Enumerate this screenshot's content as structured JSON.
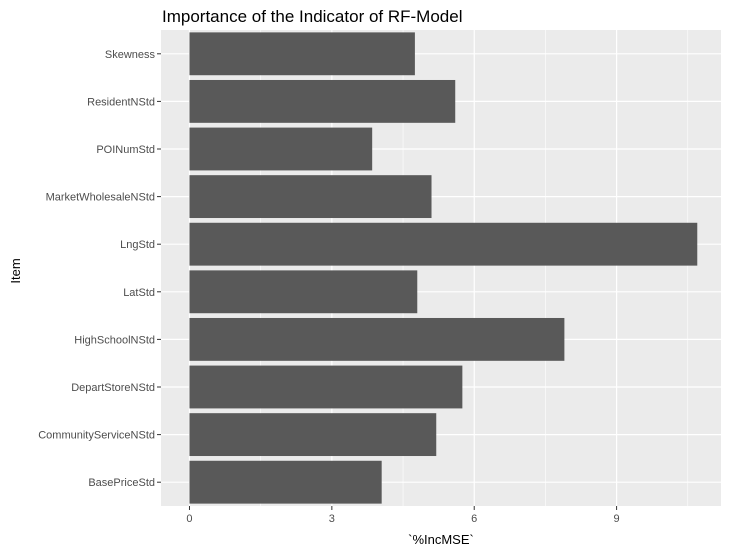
{
  "chart_data": {
    "type": "bar",
    "orientation": "horizontal",
    "title": "Importance of the Indicator of RF-Model",
    "xlabel": "`%IncMSE`",
    "ylabel": "Item",
    "xlim": [
      -0.6,
      11.2
    ],
    "xticks": [
      0,
      3,
      6,
      9
    ],
    "grid": true,
    "colors": {
      "bar": "#595959",
      "panel": "#ebebeb",
      "gridline": "#ffffff"
    },
    "categories": [
      "BasePriceStd",
      "CommunityServiceNStd",
      "DepartStoreNStd",
      "HighSchoolNStd",
      "LatStd",
      "LngStd",
      "MarketWholesaleNStd",
      "POINumStd",
      "ResidentNStd",
      "Skewness"
    ],
    "values": [
      4.05,
      5.2,
      5.75,
      7.9,
      4.8,
      10.7,
      5.1,
      3.85,
      5.6,
      4.75
    ]
  }
}
